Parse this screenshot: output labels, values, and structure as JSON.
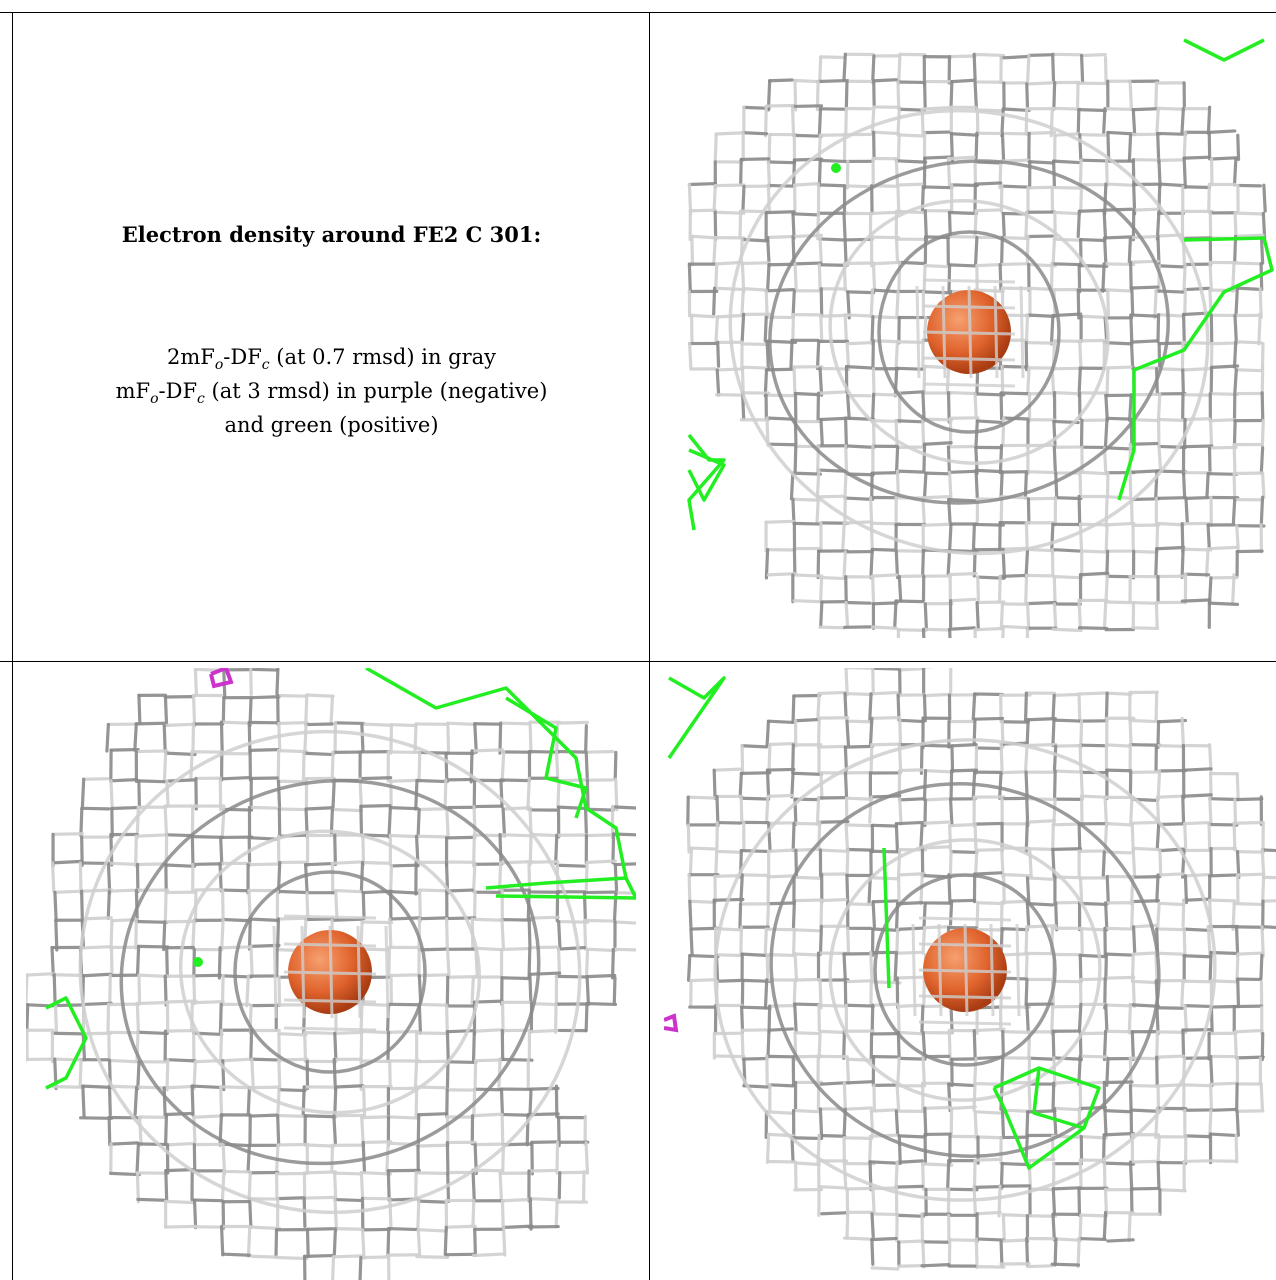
{
  "caption": {
    "title": "Electron density around FE2 C 301:",
    "line1": {
      "pre": "2mF",
      "sub1": "o",
      "mid": "-DF",
      "sub2": "c",
      "post": " (at 0.7 rmsd) in gray"
    },
    "line2": {
      "pre": "mF",
      "sub1": "o",
      "mid": "-DF",
      "sub2": "c",
      "post": " (at 3 rmsd) in purple (negative)"
    },
    "line3": "and green (positive)"
  },
  "colors": {
    "mesh_gray": "#8a8a8a",
    "mesh_light": "#cfcfcf",
    "positive_green": "#22ee22",
    "negative_purple": "#cc33cc",
    "atom_orange": "#e0632c"
  },
  "panels": [
    {
      "name": "view-top-right",
      "atom": "FE2"
    },
    {
      "name": "view-bottom-left",
      "atom": "FE2"
    },
    {
      "name": "view-bottom-right",
      "atom": "FE2"
    }
  ]
}
